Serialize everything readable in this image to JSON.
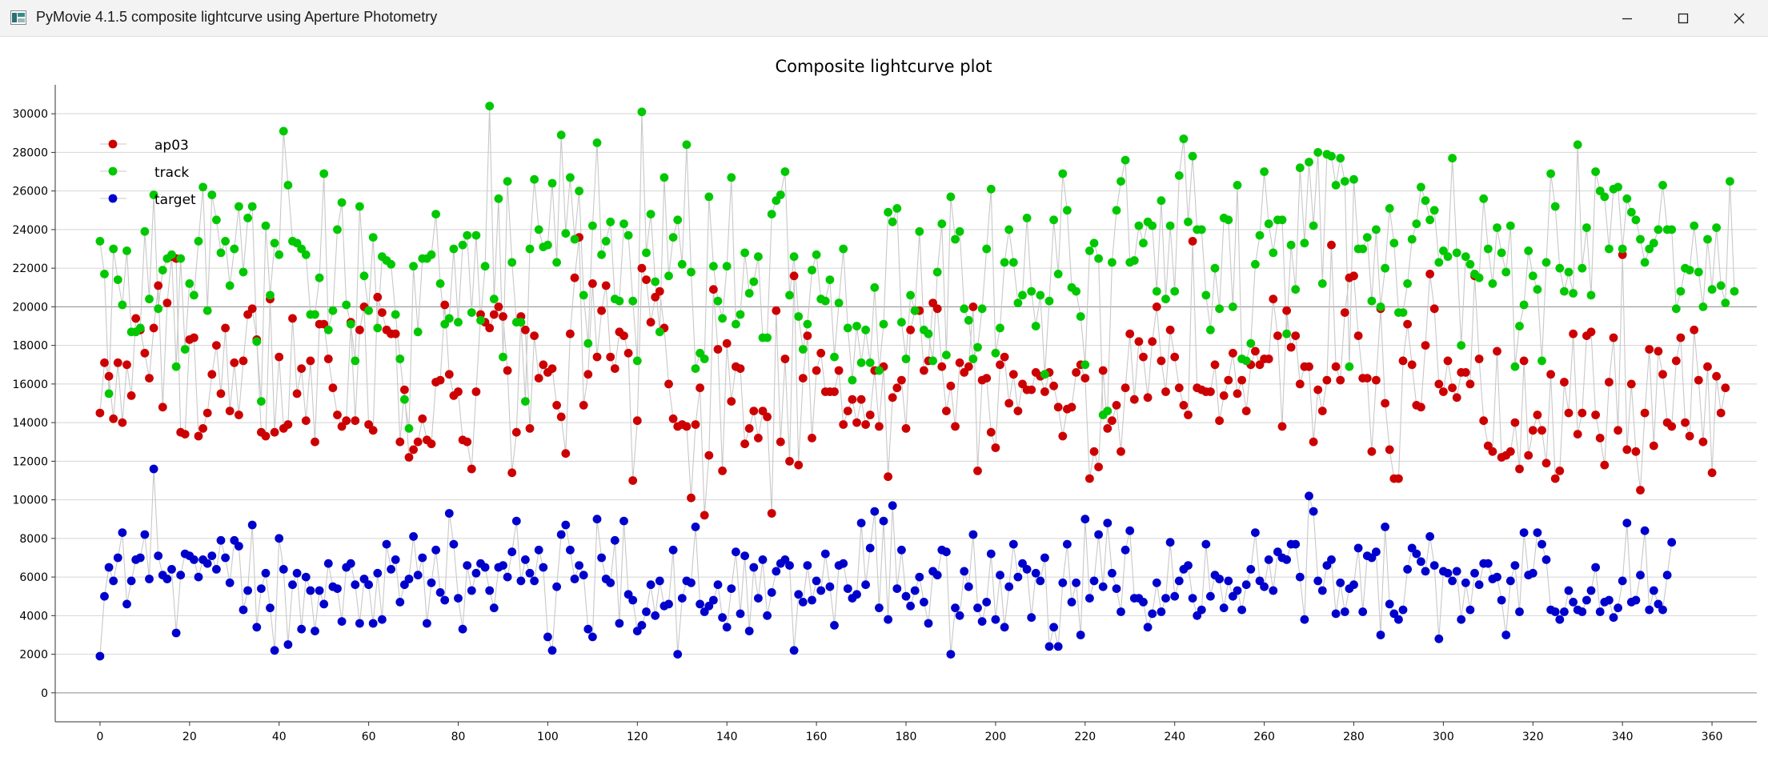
{
  "window": {
    "title": "PyMovie 4.1.5 composite lightcurve using Aperture Photometry",
    "controls": [
      "minimize",
      "maximize",
      "close"
    ]
  },
  "chart_data": {
    "type": "scatter",
    "title": "Composite lightcurve plot",
    "xlabel": "",
    "ylabel": "",
    "xlim": [
      -10,
      370
    ],
    "ylim": [
      -1500,
      31500
    ],
    "x_ticks": [
      0,
      20,
      40,
      60,
      80,
      100,
      120,
      140,
      160,
      180,
      200,
      220,
      240,
      260,
      280,
      300,
      320,
      340,
      360
    ],
    "y_ticks": [
      0,
      2000,
      4000,
      6000,
      8000,
      10000,
      12000,
      14000,
      16000,
      18000,
      20000,
      22000,
      24000,
      26000,
      28000,
      30000
    ],
    "grid": true,
    "legend_position": "top-left",
    "markers": "filled circles connected by thin light-gray lines",
    "series": [
      {
        "name": "ap03",
        "color": "#cc0000",
        "x_start": 0,
        "x_step": 1,
        "values": [
          14500,
          17100,
          16400,
          14200,
          17100,
          14000,
          17000,
          15400,
          19400,
          18800,
          17600,
          16300,
          18900,
          21100,
          14800,
          20200,
          22600,
          22500,
          13500,
          13400,
          18300,
          18400,
          13300,
          13700,
          14500,
          16500,
          18000,
          15500,
          18900,
          14600,
          17100,
          14400,
          17200,
          19600,
          19900,
          18300,
          13500,
          13300,
          20400,
          13500,
          17400,
          13700,
          13900,
          19400,
          15500,
          16800,
          14100,
          17200,
          13000,
          19100,
          19100,
          17300,
          15800,
          14400,
          13800,
          14100,
          19200,
          14100,
          18800,
          20000,
          13900,
          13600,
          20500,
          19700,
          18800,
          18600,
          18600,
          13000,
          15700,
          12200,
          12600,
          13000,
          14200,
          13100,
          12900,
          16100,
          16200,
          20100,
          16500,
          15400,
          15600,
          13100,
          13000,
          11600,
          15600,
          19600,
          19200,
          18900,
          19600,
          20000,
          19500,
          16700,
          11400,
          13500,
          19500,
          18800,
          13700,
          18500,
          16300,
          17000,
          16600,
          16800,
          14900,
          14300,
          12400,
          18600,
          21500,
          23600,
          14900,
          16500,
          21200,
          17400,
          19800,
          21100,
          17400,
          16800,
          18700,
          18500,
          17600,
          11000,
          14100,
          22000,
          21400,
          19200,
          20500,
          20800,
          18900,
          16000,
          14200,
          13800,
          13900,
          13800,
          10100,
          13900,
          15800,
          9200,
          12300,
          20900,
          17800,
          11500,
          18100,
          15100,
          16900,
          16800,
          12900,
          13700,
          14600,
          13200,
          14600,
          14300,
          9300,
          19800,
          13000,
          17300,
          12000,
          21600,
          11800,
          16300,
          18500,
          13200,
          16700,
          17600,
          15600,
          15600,
          15600,
          16700,
          13900,
          14600,
          15200,
          14000,
          15200,
          13900,
          14400,
          16700,
          13800,
          16900,
          11200,
          15300,
          15800,
          16200,
          13700,
          18800,
          19800,
          19800,
          16700,
          17200,
          20200,
          19900,
          16900,
          14600,
          15900,
          13800,
          17100,
          16600,
          16900,
          20000,
          11500,
          16200,
          16300,
          13500,
          12700,
          17000,
          17400,
          15000,
          16500,
          14600,
          16000,
          15700,
          15700,
          16600,
          16400,
          15600,
          16600,
          15900,
          14800,
          13300,
          14700,
          14800,
          16600,
          17000,
          16300,
          11100,
          12500,
          11700,
          16700,
          13700,
          14100,
          14900,
          12500,
          15800,
          18600,
          15200,
          18200,
          17400,
          15300,
          18200,
          20000,
          17200,
          15600,
          18800,
          17400,
          15800,
          14900,
          14400,
          23400,
          15800,
          15700,
          15600,
          15600,
          17000,
          14100,
          15400,
          16200,
          17600,
          15500,
          16200,
          14600,
          17000,
          17700,
          17000,
          17300,
          17300,
          20400,
          18500,
          13800,
          19800,
          17900,
          18500,
          16000,
          16900,
          16900,
          13000,
          15700,
          14600,
          16200,
          23200,
          16900,
          16200,
          19700,
          21500,
          21600,
          18500,
          16300,
          16300,
          12500,
          16200,
          19900,
          15000,
          12600,
          11100,
          11100,
          17200,
          19100,
          17000,
          14900,
          14800,
          18000,
          21700,
          19900,
          16000,
          15600,
          17200,
          15800,
          15300,
          16600,
          16600,
          16000,
          21600,
          17300,
          14100,
          12800,
          12500,
          17700,
          12200,
          12300,
          12500,
          14000,
          11600,
          17200,
          12300,
          13600,
          14400,
          13600,
          11900,
          16500,
          11100,
          11500,
          16100,
          14500,
          18600,
          13400,
          14500,
          18500,
          18700,
          14400,
          13200,
          11800,
          16100,
          18400,
          13600,
          22700,
          12600,
          16000,
          12500,
          10500,
          14500,
          17800,
          12800,
          17700,
          16500,
          14000,
          13800,
          17200,
          18400,
          14000,
          13300,
          18800,
          16200,
          13000,
          16900,
          11400,
          16400,
          14500,
          15800
        ]
      },
      {
        "name": "track",
        "color": "#00c800",
        "x_start": 0,
        "x_step": 1,
        "values": [
          23400,
          21700,
          15500,
          23000,
          21400,
          20100,
          22900,
          18700,
          18700,
          18900,
          23900,
          20400,
          25800,
          19900,
          21900,
          22500,
          22700,
          16900,
          22500,
          17800,
          21200,
          20600,
          23400,
          26200,
          19800,
          25800,
          24500,
          22800,
          23400,
          21100,
          23000,
          25200,
          21800,
          24600,
          25200,
          18200,
          15100,
          24200,
          20600,
          23300,
          22700,
          29100,
          26300,
          23400,
          23300,
          23000,
          22700,
          19600,
          19600,
          21500,
          26900,
          18800,
          19800,
          24000,
          25400,
          20100,
          19100,
          17200,
          25200,
          21600,
          19800,
          23600,
          18900,
          22600,
          22400,
          22200,
          19600,
          17300,
          15200,
          13700,
          22100,
          18700,
          22500,
          22500,
          22700,
          24800,
          21200,
          19100,
          19400,
          23000,
          19200,
          23200,
          23700,
          19700,
          23700,
          19300,
          22100,
          30400,
          20400,
          25600,
          17400,
          26500,
          22300,
          19200,
          19200,
          15100,
          23000,
          26600,
          24000,
          23100,
          23200,
          26400,
          22300,
          28900,
          23800,
          26700,
          23500,
          26000,
          20600,
          18100,
          24200,
          28500,
          22700,
          23400,
          24400,
          20400,
          20300,
          24300,
          23700,
          20300,
          17200,
          30100,
          22800,
          24800,
          21300,
          18700,
          26700,
          21600,
          23600,
          24500,
          22200,
          28400,
          21800,
          16800,
          17600,
          17300,
          25700,
          22100,
          20300,
          19400,
          22100,
          26700,
          19100,
          19600,
          22800,
          20700,
          21300,
          22600,
          18400,
          18400,
          24800,
          25500,
          25800,
          27000,
          20600,
          22600,
          19500,
          17800,
          19100,
          21900,
          22700,
          20400,
          20300,
          21400,
          17400,
          20200,
          23000,
          18900,
          16200,
          19000,
          17100,
          18800,
          17100,
          21000,
          16700,
          19100,
          24900,
          24400,
          25100,
          19200,
          17300,
          20600,
          19800,
          23900,
          18800,
          18600,
          17200,
          21800,
          24300,
          17500,
          25700,
          23500,
          23900,
          19900,
          19300,
          17300,
          17900,
          19900,
          23000,
          26100,
          17600,
          18900,
          22300,
          24000,
          22300,
          20200,
          20600,
          24600,
          20800,
          19000,
          20600,
          16500,
          20300,
          24500,
          21700,
          26900,
          25000,
          21000,
          20800,
          19500,
          17000,
          22900,
          23300,
          22500,
          14400,
          14600,
          22300,
          25000,
          26500,
          27600,
          22300,
          22400,
          24200,
          23300,
          24400,
          24200,
          20800,
          25500,
          20400,
          24200,
          20800,
          26800,
          28700,
          24400,
          27800,
          24000,
          24000,
          20600,
          18800,
          22000,
          19900,
          24600,
          24500,
          20000,
          26300,
          17300,
          17200,
          18100,
          22200,
          23700,
          27000,
          24300,
          22800,
          24500,
          24500,
          18600,
          23200,
          20900,
          27200,
          23300,
          27500,
          24200,
          28000,
          21200,
          27900,
          27800,
          26300,
          27700,
          26500,
          16900,
          26600,
          23000,
          23000,
          23600,
          20300,
          24000,
          20000,
          22000,
          25100,
          23300,
          19700,
          19700,
          21200,
          23500,
          24300,
          26200,
          25500,
          24500,
          25000,
          22300,
          22900,
          22600,
          27700,
          22800,
          18000,
          22600,
          22200,
          21700,
          21500,
          25600,
          23000,
          21200,
          24100,
          22800,
          21800,
          24200,
          16900,
          19000,
          20100,
          22900,
          21600,
          20900,
          17200,
          22300,
          26900,
          25200,
          22000,
          20800,
          21800,
          20700,
          28400,
          22000,
          24100,
          20600,
          27000,
          26000,
          25700,
          23000,
          26100,
          26200,
          23000,
          25600,
          24900,
          24500,
          23500,
          22300,
          23000,
          23300,
          24000,
          26300,
          24000,
          24000,
          19900,
          20800,
          22000,
          21900,
          24200,
          21800,
          20000,
          23500,
          20900,
          24100,
          21100,
          20200,
          26500,
          20800
        ]
      },
      {
        "name": "target",
        "color": "#0000cc",
        "x_start": 0,
        "x_step": 1,
        "values": [
          1900,
          5000,
          6500,
          5800,
          7000,
          8300,
          4600,
          5800,
          6900,
          7000,
          8200,
          5900,
          11600,
          7100,
          6100,
          5900,
          6400,
          3100,
          6100,
          7200,
          7100,
          6900,
          6000,
          6900,
          6700,
          7100,
          6400,
          7900,
          7000,
          5700,
          7900,
          7600,
          4300,
          5300,
          8700,
          3400,
          5400,
          6200,
          4400,
          2200,
          8000,
          6400,
          2500,
          5600,
          6200,
          3300,
          6000,
          5300,
          3200,
          5300,
          4600,
          6700,
          5500,
          5400,
          3700,
          6500,
          6700,
          5600,
          3600,
          5900,
          5600,
          3600,
          6200,
          3800,
          7700,
          6400,
          6900,
          4700,
          5600,
          5900,
          8100,
          6100,
          7000,
          3600,
          5700,
          7400,
          5200,
          4800,
          9300,
          7700,
          4900,
          3300,
          6600,
          5300,
          6200,
          6700,
          6500,
          5300,
          4400,
          6500,
          6600,
          6000,
          7300,
          8900,
          5800,
          6900,
          6200,
          5800,
          7400,
          6500,
          2900,
          2200,
          5500,
          8200,
          8700,
          7400,
          5900,
          6600,
          6100,
          3300,
          2900,
          9000,
          7000,
          5900,
          5700,
          7900,
          3600,
          8900,
          5100,
          4800,
          3200,
          3500,
          4200,
          5600,
          4000,
          5800,
          4500,
          4600,
          7400,
          2000,
          4900,
          5800,
          5700,
          8600,
          4600,
          4200,
          4500,
          4800,
          5600,
          3900,
          3400,
          5400,
          7300,
          4100,
          7100,
          3200,
          6500,
          4900,
          6900,
          4000,
          5200,
          6300,
          6700,
          6900,
          6600,
          2200,
          5100,
          4700,
          6600,
          4800,
          5800,
          5300,
          7200,
          5500,
          3500,
          6600,
          6700,
          5400,
          4900,
          5100,
          8800,
          5600,
          7500,
          9400,
          4400,
          8900,
          3800,
          9700,
          5400,
          7400,
          5000,
          4500,
          5300,
          6000,
          4700,
          3600,
          6300,
          6100,
          7400,
          7300,
          2000,
          4400,
          4000,
          6300,
          5500,
          8200,
          4400,
          3700,
          4700,
          7200,
          3800,
          6100,
          3400,
          5500,
          7700,
          6000,
          6700,
          6400,
          3900,
          6200,
          5800,
          7000,
          2400,
          3400,
          2400,
          5700,
          7700,
          4700,
          5700,
          3000,
          9000,
          4900,
          5800,
          8200,
          5500,
          8800,
          6200,
          5400,
          4200,
          7400,
          8400,
          4900,
          4900,
          4700,
          3400,
          4100,
          5700,
          4200,
          4900,
          7800,
          5000,
          5800,
          6400,
          6600,
          4900,
          4000,
          4300,
          7700,
          5000,
          6100,
          5900,
          4400,
          5800,
          5000,
          5300,
          4300,
          5600,
          6400,
          8300,
          5800,
          5500,
          6900,
          5300,
          7300,
          7000,
          6900,
          7700,
          7700,
          6000,
          3800,
          10200,
          9400,
          5800,
          5300,
          6600,
          6900,
          4100,
          5700,
          4200,
          5400,
          5600,
          7500,
          4200,
          7100,
          7000,
          7300,
          3000,
          8600,
          4600,
          4100,
          3800,
          4300,
          6400,
          7500,
          7200,
          6800,
          6300,
          8100,
          6600,
          2800,
          6300,
          6200,
          5800,
          6300,
          3800,
          5700,
          4300,
          6200,
          5600,
          6700,
          6700,
          5900,
          6000,
          4800,
          3000,
          5800,
          6600,
          4200,
          8300,
          6100,
          6200,
          8300,
          7700,
          6900,
          4300,
          4200,
          3800,
          4200,
          5300,
          4700,
          4300,
          4200,
          4800,
          5300,
          6500,
          4200,
          4700,
          4800,
          3900,
          4400,
          5800,
          8800,
          4700,
          4800,
          6100,
          8400,
          4300,
          5300,
          4600,
          4300,
          6100,
          7800
        ]
      }
    ]
  }
}
